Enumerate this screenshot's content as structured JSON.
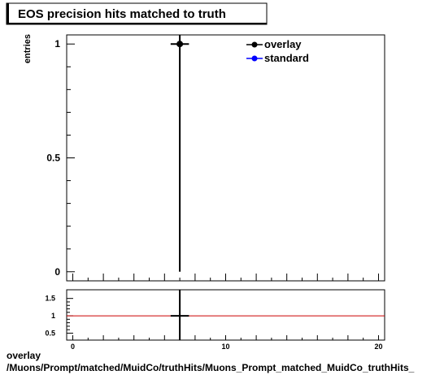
{
  "chart_data": [
    {
      "type": "scatter",
      "title": "EOS precision hits matched to truth",
      "ylabel": "entries",
      "xlim": [
        -0.4,
        20.4
      ],
      "ylim": [
        -0.04,
        1.04
      ],
      "yticks": [
        {
          "v": 0,
          "label": "0"
        },
        {
          "v": 0.5,
          "label": "0.5"
        },
        {
          "v": 1,
          "label": "1"
        }
      ],
      "legend_position": "top-right",
      "series": [
        {
          "name": "overlay",
          "color": "#000000",
          "points": [
            {
              "x": 7,
              "y": 1,
              "xerr": 0.5,
              "ylow": 0,
              "yhigh": 1.3
            }
          ]
        },
        {
          "name": "standard",
          "color": "#0000ff",
          "points": []
        }
      ]
    },
    {
      "type": "line",
      "xlim": [
        -0.4,
        20.4
      ],
      "ylim": [
        0.3,
        1.75
      ],
      "yticks": [
        {
          "v": 0.5,
          "label": "0.5"
        },
        {
          "v": 1,
          "label": "1"
        },
        {
          "v": 1.5,
          "label": "1.5"
        }
      ],
      "xticks": [
        {
          "v": 0,
          "label": "0"
        },
        {
          "v": 10,
          "label": "10"
        },
        {
          "v": 20,
          "label": "20"
        }
      ],
      "reference_line": {
        "y": 1,
        "color": "#cc0000"
      },
      "points": [
        {
          "x": 7,
          "y": 1,
          "xerr": 0.5,
          "ylow": 0.3,
          "yhigh": 1.75
        }
      ]
    }
  ],
  "footer": {
    "line1": "overlay",
    "line2": "/Muons/Prompt/matched/MuidCo/truthHits/Muons_Prompt_matched_MuidCo_truthHits_"
  }
}
